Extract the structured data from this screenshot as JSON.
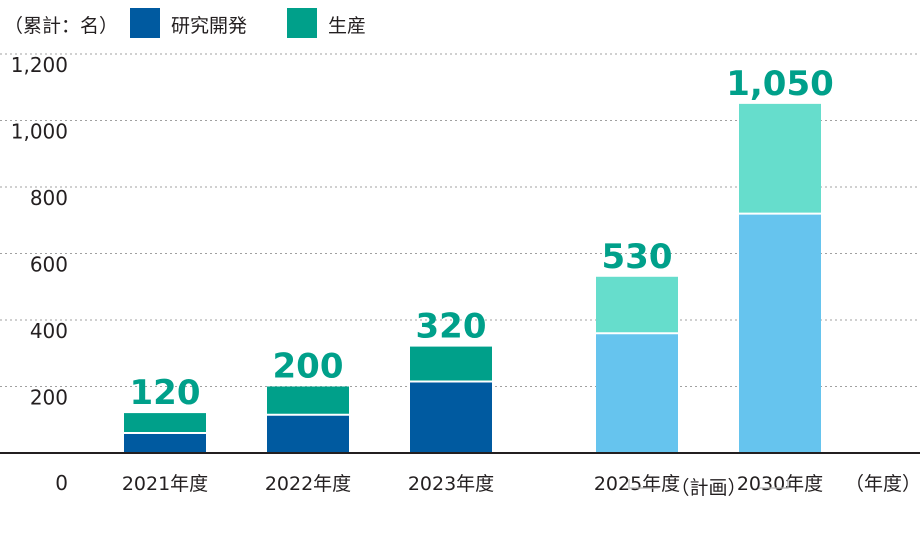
{
  "chart_data": {
    "type": "bar",
    "stacked": true,
    "unit_label": "（累計：名）",
    "x_unit_label": "（年度）",
    "categories": [
      "2021年度",
      "2022年度",
      "2023年度",
      "2025年度",
      "2030年度"
    ],
    "plan_label": "（計画）",
    "plan_categories": [
      "2025年度",
      "2030年度"
    ],
    "series": [
      {
        "name": "研究開発",
        "values": [
          60,
          115,
          215,
          360,
          720
        ],
        "color": "#005aa0",
        "plan_color": "#66c4ee"
      },
      {
        "name": "生産",
        "values": [
          60,
          85,
          105,
          170,
          330
        ],
        "color": "#00a08a",
        "plan_color": "#66ddcc"
      }
    ],
    "totals": [
      "120",
      "200",
      "320",
      "530",
      "1,050"
    ],
    "y_ticks": [
      "0",
      "200",
      "400",
      "600",
      "800",
      "1,000",
      "1,200"
    ],
    "ylim": [
      0,
      1200
    ],
    "grid": true,
    "legend_position": "top-left"
  }
}
